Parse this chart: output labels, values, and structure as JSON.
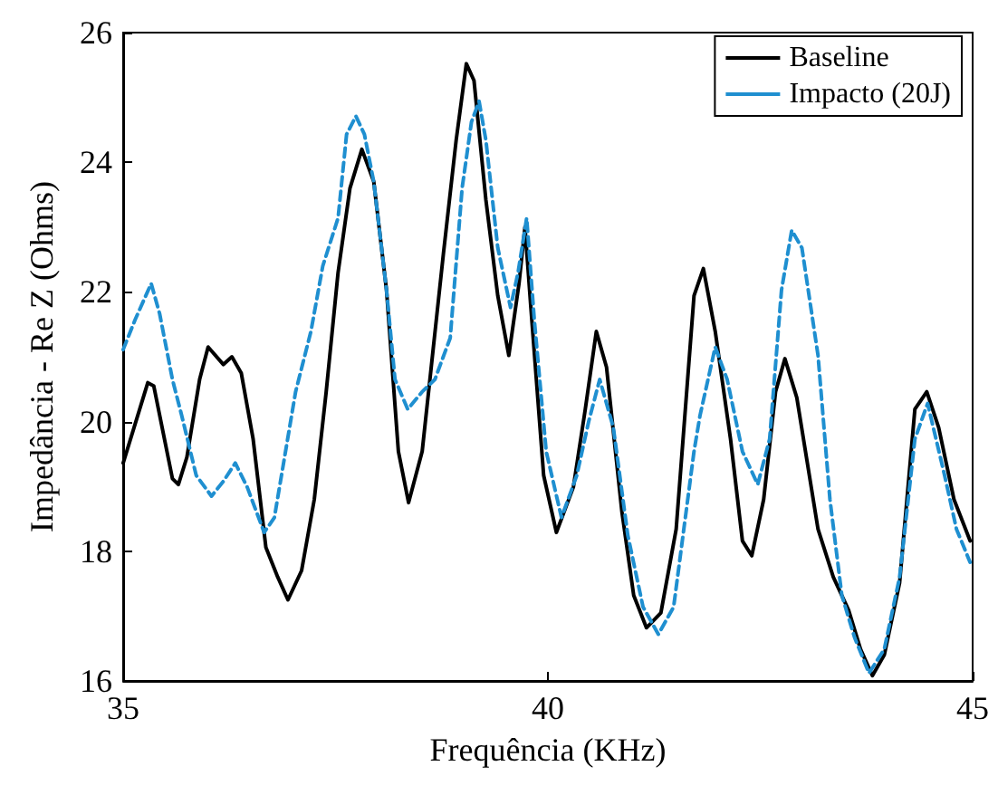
{
  "chart_data": {
    "type": "line",
    "xlabel": "Frequência (KHz)",
    "ylabel": "Impedância - Re Z (Ohms)",
    "xlim": [
      35,
      45
    ],
    "xticks": [
      35,
      40,
      45
    ],
    "ylim": [
      16,
      26
    ],
    "yticks": [
      16,
      18,
      20,
      22,
      24,
      26
    ],
    "grid": false,
    "legend": "top right",
    "marker": "none",
    "series": [
      {
        "name": "Baseline",
        "color": "#000000",
        "line_style": "solid",
        "x": [
          35.0,
          35.29,
          35.36,
          35.58,
          35.65,
          35.75,
          35.9,
          36.0,
          36.18,
          36.28,
          36.39,
          36.53,
          36.68,
          36.82,
          36.94,
          37.1,
          37.25,
          37.39,
          37.53,
          37.67,
          37.81,
          37.95,
          38.1,
          38.24,
          38.36,
          38.52,
          38.77,
          38.92,
          39.04,
          39.13,
          39.27,
          39.41,
          39.54,
          39.66,
          39.73,
          39.8,
          39.95,
          40.1,
          40.3,
          40.44,
          40.57,
          40.69,
          40.87,
          41.01,
          41.16,
          41.33,
          41.51,
          41.72,
          41.83,
          41.97,
          42.15,
          42.29,
          42.4,
          42.54,
          42.68,
          42.79,
          42.93,
          43.18,
          43.36,
          43.54,
          43.68,
          43.82,
          43.96,
          44.14,
          44.32,
          44.46,
          44.6,
          44.78,
          44.97
        ],
        "values": [
          19.36,
          20.6,
          20.55,
          19.12,
          19.03,
          19.45,
          20.65,
          21.15,
          20.88,
          21.0,
          20.75,
          19.73,
          18.06,
          17.6,
          17.25,
          17.7,
          18.8,
          20.46,
          22.3,
          23.6,
          24.2,
          23.7,
          22.03,
          19.54,
          18.75,
          19.54,
          22.59,
          24.34,
          25.52,
          25.26,
          23.42,
          21.94,
          21.02,
          22.13,
          23.0,
          21.75,
          19.17,
          18.29,
          18.99,
          20.19,
          21.39,
          20.84,
          18.62,
          17.32,
          16.82,
          17.05,
          18.34,
          21.94,
          22.36,
          21.39,
          19.73,
          18.16,
          17.93,
          18.8,
          20.46,
          20.97,
          20.37,
          18.34,
          17.6,
          17.09,
          16.49,
          16.08,
          16.4,
          17.51,
          20.19,
          20.46,
          19.91,
          18.8,
          18.16
        ]
      },
      {
        "name": "Impacto (20J)",
        "color": "#1f8fd0",
        "line_style": "dashed",
        "x": [
          35.0,
          35.14,
          35.33,
          35.43,
          35.58,
          35.69,
          35.86,
          36.04,
          36.18,
          36.32,
          36.46,
          36.66,
          36.78,
          37.03,
          37.21,
          37.35,
          37.53,
          37.63,
          37.74,
          37.84,
          37.95,
          38.1,
          38.2,
          38.35,
          38.52,
          38.67,
          38.85,
          38.99,
          39.1,
          39.19,
          39.27,
          39.41,
          39.56,
          39.65,
          39.75,
          39.84,
          39.98,
          40.16,
          40.34,
          40.48,
          40.61,
          40.77,
          40.94,
          41.12,
          41.3,
          41.48,
          41.72,
          41.79,
          41.97,
          42.11,
          42.29,
          42.47,
          42.61,
          42.75,
          42.87,
          42.99,
          43.18,
          43.32,
          43.46,
          43.61,
          43.78,
          43.96,
          44.14,
          44.32,
          44.47,
          44.67,
          44.81,
          44.97
        ],
        "values": [
          21.11,
          21.57,
          22.13,
          21.66,
          20.65,
          20.09,
          19.17,
          18.85,
          19.08,
          19.36,
          18.99,
          18.29,
          18.52,
          20.46,
          21.39,
          22.4,
          23.14,
          24.43,
          24.71,
          24.43,
          23.7,
          22.03,
          20.65,
          20.19,
          20.46,
          20.65,
          21.29,
          23.6,
          24.62,
          24.94,
          24.34,
          22.68,
          21.76,
          22.31,
          23.14,
          21.57,
          19.54,
          18.52,
          19.17,
          20.0,
          20.65,
          19.91,
          18.25,
          17.14,
          16.72,
          17.14,
          19.54,
          20.09,
          21.15,
          20.65,
          19.54,
          19.03,
          19.73,
          22.03,
          22.95,
          22.68,
          21.02,
          18.8,
          17.32,
          16.67,
          16.12,
          16.49,
          17.6,
          19.73,
          20.28,
          19.17,
          18.34,
          17.83
        ]
      }
    ]
  }
}
